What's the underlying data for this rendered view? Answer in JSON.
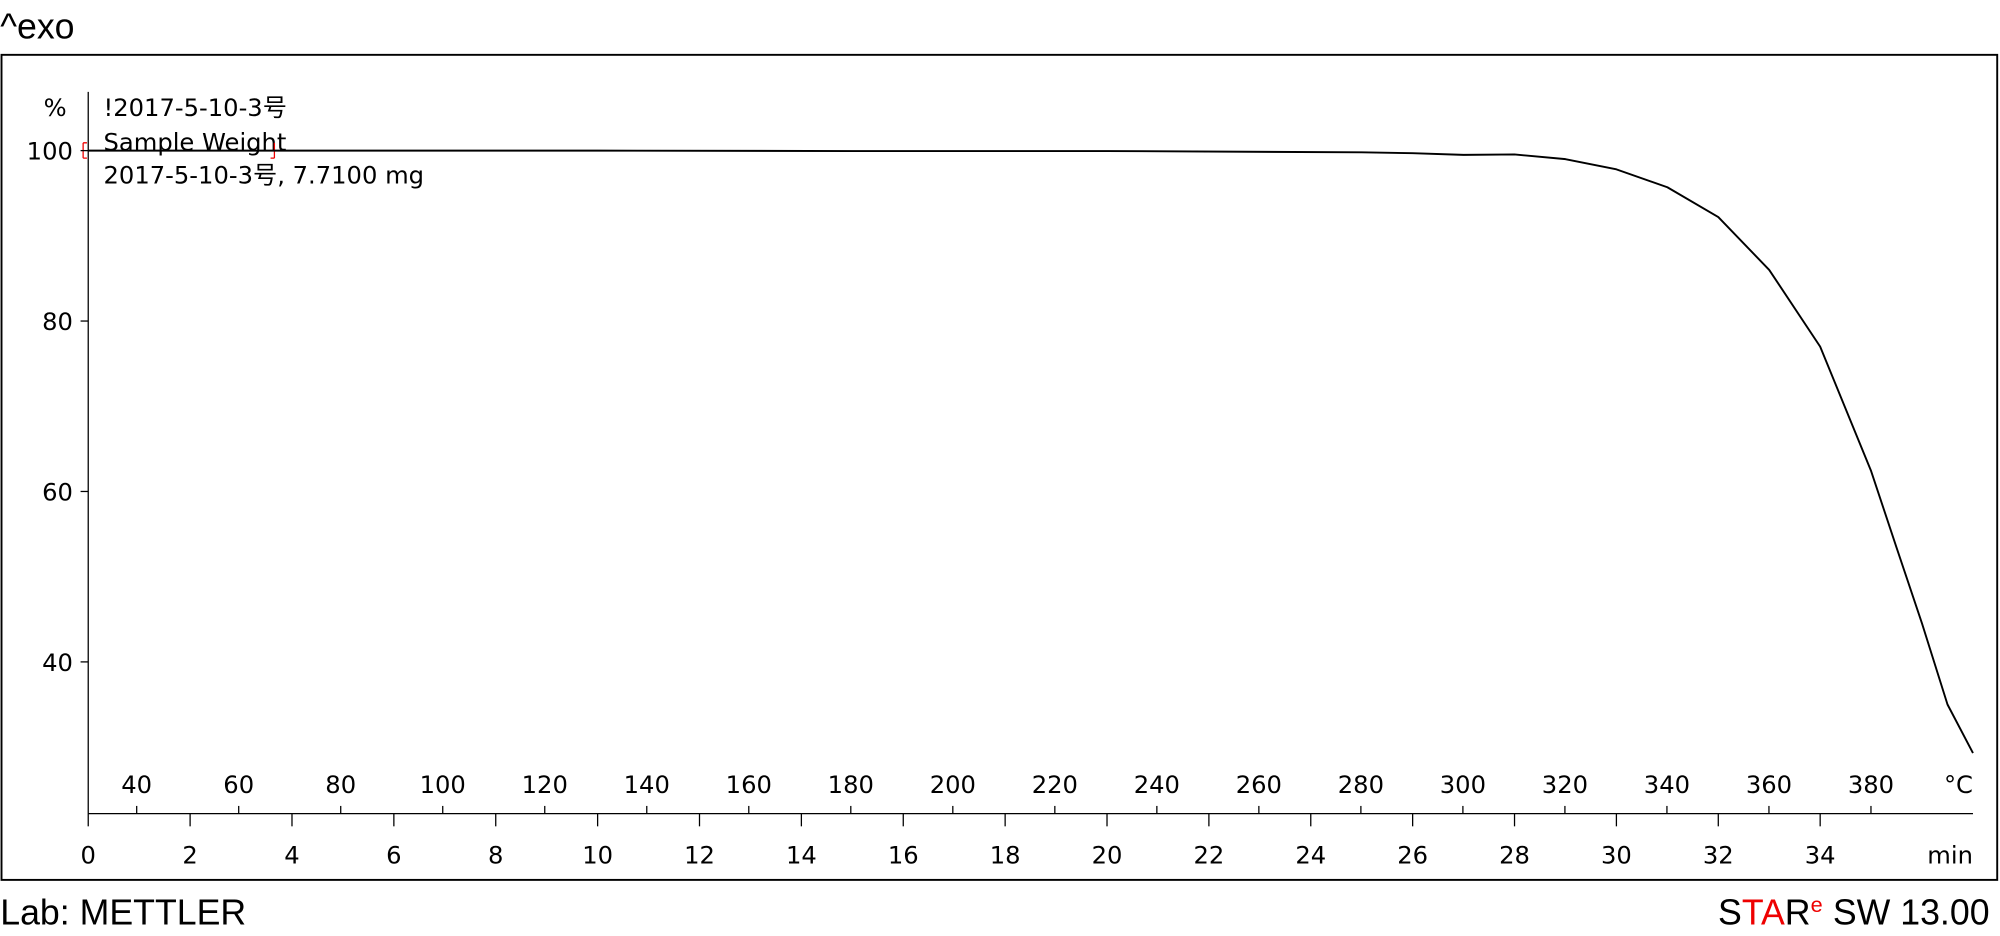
{
  "header": "^exo",
  "chart_data": {
    "type": "line",
    "ylabel": "%",
    "xlabel": "min",
    "x2label": "°C",
    "annotations": [
      "Sample Weight",
      "2017-5-10-3号, 7.7100 mg"
    ],
    "x": [
      0,
      5,
      10,
      15,
      20,
      25,
      26,
      27,
      28,
      29,
      30,
      31,
      32,
      33,
      34,
      35,
      35.5,
      36,
      36.5,
      37
    ],
    "series": [
      {
        "name": "!2017-5-10-3号",
        "color": "#000000",
        "values": [
          100,
          100,
          100,
          99.95,
          99.95,
          99.8,
          99.7,
          99.5,
          99.55,
          99,
          97.8,
          95.7,
          92.2,
          86,
          77,
          62.4,
          53.4,
          44.5,
          35,
          29.3
        ]
      }
    ],
    "xlim": [
      0,
      37
    ],
    "xticks": [
      0,
      2,
      4,
      6,
      8,
      10,
      12,
      14,
      16,
      18,
      20,
      22,
      24,
      26,
      28,
      30,
      32,
      34
    ],
    "x2lim": [
      30.5,
      400
    ],
    "x2ticks": [
      40,
      60,
      80,
      100,
      120,
      140,
      160,
      180,
      200,
      220,
      240,
      260,
      280,
      300,
      320,
      340,
      360,
      380
    ],
    "ylim": [
      22.2,
      106.9
    ],
    "yticks": [
      40,
      60,
      80,
      100
    ],
    "grid": false
  },
  "footer": {
    "lab": "Lab: METTLER",
    "software": [
      "S",
      "TA",
      "R",
      "e",
      "SW 13.00"
    ]
  }
}
